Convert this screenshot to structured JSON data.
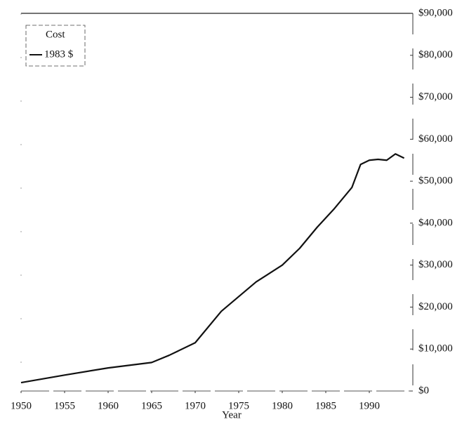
{
  "chart_data": {
    "type": "line",
    "x_label": "Year",
    "legend_title": "Cost",
    "legend": "upper left",
    "x": [
      1950,
      1955,
      1960,
      1965,
      1967,
      1970,
      1973,
      1977,
      1980,
      1982,
      1984,
      1986,
      1988,
      1989,
      1990,
      1991,
      1992,
      1993,
      1994
    ],
    "series": [
      {
        "name": "1983 $",
        "color": "#111111",
        "values": [
          2000,
          3800,
          5500,
          6800,
          8500,
          11500,
          19000,
          26000,
          30000,
          34000,
          39000,
          43500,
          48500,
          54000,
          55000,
          55200,
          55000,
          56500,
          55500
        ]
      }
    ],
    "xlim": [
      1950,
      1995
    ],
    "xticks": [
      1950,
      1955,
      1960,
      1965,
      1970,
      1975,
      1980,
      1985,
      1990
    ],
    "ylim": [
      0,
      90000
    ],
    "yticks": [
      {
        "value": 0,
        "label": "$0"
      },
      {
        "value": 10000,
        "label": "$10,000"
      },
      {
        "value": 20000,
        "label": "$20,000"
      },
      {
        "value": 30000,
        "label": "$30,000"
      },
      {
        "value": 40000,
        "label": "$40,000"
      },
      {
        "value": 50000,
        "label": "$50,000"
      },
      {
        "value": 60000,
        "label": "$60,000"
      },
      {
        "value": 70000,
        "label": "$70,000"
      },
      {
        "value": 80000,
        "label": "$80,000"
      },
      {
        "value": 90000,
        "label": "$90,000"
      }
    ]
  }
}
